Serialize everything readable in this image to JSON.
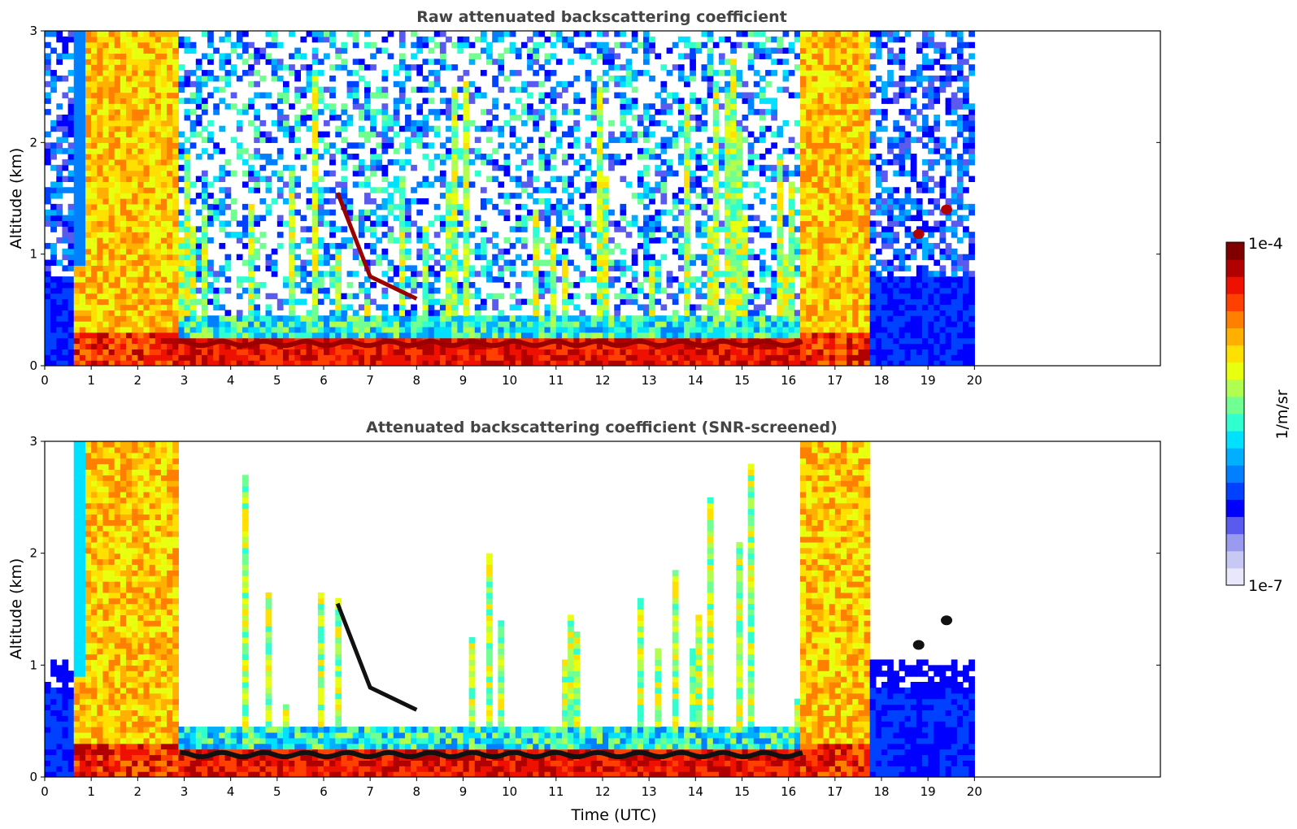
{
  "chart_data": [
    {
      "type": "heatmap",
      "title": "Raw attenuated backscattering coefficient",
      "xlabel": "",
      "ylabel": "Altitude (km)",
      "xlim": [
        0,
        24
      ],
      "ylim": [
        0,
        3
      ],
      "x_ticks": [
        "0",
        "1",
        "2",
        "3",
        "4",
        "5",
        "6",
        "7",
        "8",
        "9",
        "10",
        "11",
        "12",
        "13",
        "14",
        "15",
        "16",
        "17",
        "18",
        "19",
        "20"
      ],
      "y_ticks": [
        "0",
        "1",
        "2",
        "3"
      ],
      "data_time_range": [
        0,
        20
      ],
      "colorscale": "jet",
      "color_range": [
        "1e-7",
        "1e-4"
      ],
      "features": {
        "thick_cloud_periods_utc": [
          [
            0.6,
            2.9
          ],
          [
            16.3,
            17.8
          ]
        ],
        "boundary_layer_top_km": 0.2,
        "elevated_layer": [
          [
            6.3,
            1.55
          ],
          [
            7.0,
            0.8
          ],
          [
            8.0,
            0.6
          ]
        ],
        "high_cloud_patches": [
          [
            18.8,
            1.18
          ],
          [
            19.4,
            1.4
          ]
        ]
      },
      "screened": false
    },
    {
      "type": "heatmap",
      "title": "Attenuated backscattering coefficient (SNR-screened)",
      "xlabel": "Time (UTC)",
      "ylabel": "Altitude (km)",
      "xlim": [
        0,
        24
      ],
      "ylim": [
        0,
        3
      ],
      "x_ticks": [
        "0",
        "1",
        "2",
        "3",
        "4",
        "5",
        "6",
        "7",
        "8",
        "9",
        "10",
        "11",
        "12",
        "13",
        "14",
        "15",
        "16",
        "17",
        "18",
        "19",
        "20"
      ],
      "y_ticks": [
        "0",
        "1",
        "2",
        "3"
      ],
      "data_time_range": [
        0,
        20
      ],
      "colorscale": "jet",
      "color_range": [
        "1e-7",
        "1e-4"
      ],
      "features": {
        "thick_cloud_periods_utc": [
          [
            0.6,
            2.9
          ],
          [
            16.3,
            17.8
          ]
        ],
        "boundary_layer_top_km": 0.2,
        "elevated_layer": [
          [
            6.3,
            1.55
          ],
          [
            7.0,
            0.8
          ],
          [
            8.0,
            0.6
          ]
        ],
        "high_cloud_patches": [
          [
            18.8,
            1.18
          ],
          [
            19.4,
            1.4
          ]
        ]
      },
      "screened": true
    }
  ],
  "colorbar": {
    "max_label": "1e-4",
    "min_label": "1e-7",
    "unit_label": "1/m/sr",
    "colors": [
      "#e8e8fa",
      "#c8c8f5",
      "#9a9af0",
      "#5a5aee",
      "#0000ff",
      "#0040ff",
      "#0080ff",
      "#00b0ff",
      "#00e0ff",
      "#30ffd0",
      "#70ff90",
      "#b0ff50",
      "#e8ff10",
      "#ffe000",
      "#ffb000",
      "#ff8000",
      "#ff4000",
      "#ee1000",
      "#b00000",
      "#800000"
    ]
  }
}
